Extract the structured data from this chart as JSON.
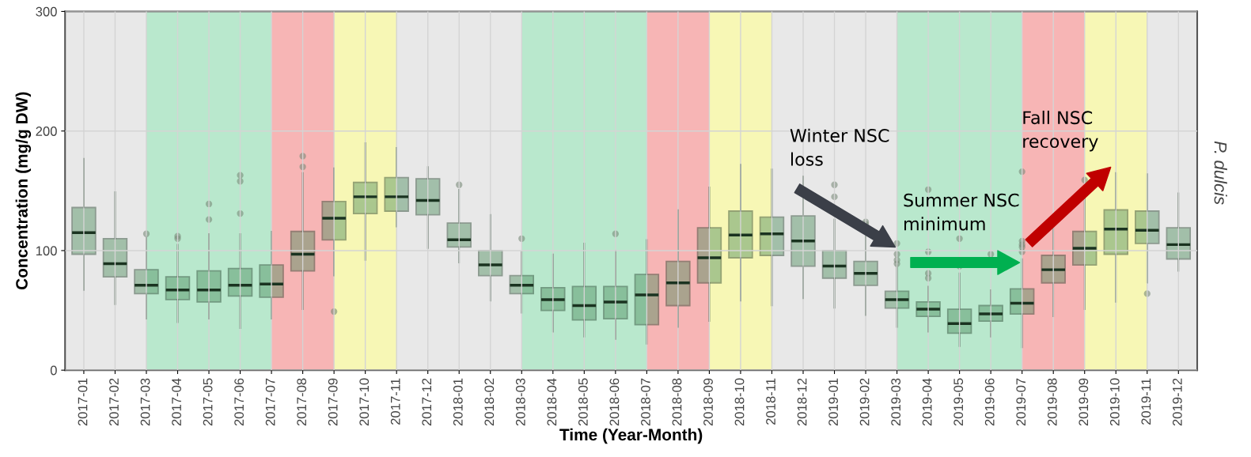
{
  "chart_data": {
    "type": "box",
    "xlabel": "Time (Year-Month)",
    "ylabel": "Concentration (mg/g DW)",
    "y2label": "P. dulcis",
    "categories": [
      "2017-01",
      "2017-02",
      "2017-03",
      "2017-04",
      "2017-05",
      "2017-06",
      "2017-07",
      "2017-08",
      "2017-09",
      "2017-10",
      "2017-11",
      "2017-12",
      "2018-01",
      "2018-02",
      "2018-03",
      "2018-04",
      "2018-05",
      "2018-06",
      "2018-07",
      "2018-08",
      "2018-09",
      "2018-10",
      "2018-11",
      "2018-12",
      "2019-01",
      "2019-02",
      "2019-03",
      "2019-04",
      "2019-05",
      "2019-06",
      "2019-07",
      "2019-08",
      "2019-09",
      "2019-10",
      "2019-11",
      "2019-12"
    ],
    "color": "#4f8f5f",
    "boxes": [
      {
        "low": 67,
        "q1": 97,
        "median": 115,
        "q3": 136,
        "high": 177
      },
      {
        "low": 55,
        "q1": 78,
        "median": 89,
        "q3": 110,
        "high": 149
      },
      {
        "low": 43,
        "q1": 64,
        "median": 71,
        "q3": 84,
        "high": 112,
        "outliers": [
          114
        ]
      },
      {
        "low": 40,
        "q1": 59,
        "median": 67,
        "q3": 78,
        "high": 105,
        "outliers": [
          110,
          112
        ]
      },
      {
        "low": 43,
        "q1": 57,
        "median": 67,
        "q3": 83,
        "high": 114,
        "outliers": [
          126,
          139
        ]
      },
      {
        "low": 35,
        "q1": 62,
        "median": 71,
        "q3": 85,
        "high": 114,
        "outliers": [
          131,
          158,
          163
        ]
      },
      {
        "low": 43,
        "q1": 61,
        "median": 72,
        "q3": 88,
        "high": 116
      },
      {
        "low": 51,
        "q1": 83,
        "median": 97,
        "q3": 116,
        "high": 165,
        "outliers": [
          170,
          179
        ]
      },
      {
        "low": 79,
        "q1": 109,
        "median": 127,
        "q3": 141,
        "high": 169,
        "outliers": [
          49
        ]
      },
      {
        "low": 92,
        "q1": 131,
        "median": 145,
        "q3": 157,
        "high": 190
      },
      {
        "low": 120,
        "q1": 133,
        "median": 145,
        "q3": 161,
        "high": 186
      },
      {
        "low": 102,
        "q1": 130,
        "median": 142,
        "q3": 160,
        "high": 170
      },
      {
        "low": 90,
        "q1": 103,
        "median": 109,
        "q3": 123,
        "high": 151,
        "outliers": [
          155
        ]
      },
      {
        "low": 58,
        "q1": 79,
        "median": 88,
        "q3": 100,
        "high": 130
      },
      {
        "low": 48,
        "q1": 64,
        "median": 71,
        "q3": 79,
        "high": 99,
        "outliers": [
          110
        ]
      },
      {
        "low": 32,
        "q1": 50,
        "median": 59,
        "q3": 69,
        "high": 97
      },
      {
        "low": 28,
        "q1": 42,
        "median": 54,
        "q3": 70,
        "high": 106
      },
      {
        "low": 26,
        "q1": 43,
        "median": 57,
        "q3": 70,
        "high": 100,
        "outliers": [
          114
        ]
      },
      {
        "low": 22,
        "q1": 38,
        "median": 63,
        "q3": 80,
        "high": 109
      },
      {
        "low": 36,
        "q1": 54,
        "median": 73,
        "q3": 91,
        "high": 134
      },
      {
        "low": 41,
        "q1": 73,
        "median": 94,
        "q3": 119,
        "high": 153
      },
      {
        "low": 58,
        "q1": 94,
        "median": 113,
        "q3": 133,
        "high": 172
      },
      {
        "low": 54,
        "q1": 96,
        "median": 114,
        "q3": 128,
        "high": 168
      },
      {
        "low": 60,
        "q1": 87,
        "median": 108,
        "q3": 129,
        "high": 162
      },
      {
        "low": 52,
        "q1": 77,
        "median": 87,
        "q3": 100,
        "high": 126,
        "outliers": [
          145,
          155
        ]
      },
      {
        "low": 46,
        "q1": 71,
        "median": 81,
        "q3": 91,
        "high": 112,
        "outliers": [
          122,
          124
        ]
      },
      {
        "low": 36,
        "q1": 52,
        "median": 59,
        "q3": 66,
        "high": 88,
        "outliers": [
          89,
          92,
          97,
          106
        ]
      },
      {
        "low": 32,
        "q1": 45,
        "median": 51,
        "q3": 57,
        "high": 70,
        "outliers": [
          77,
          81,
          99,
          151
        ]
      },
      {
        "low": 20,
        "q1": 31,
        "median": 39,
        "q3": 51,
        "high": 81,
        "outliers": [
          87,
          110
        ]
      },
      {
        "low": 28,
        "q1": 41,
        "median": 47,
        "q3": 54,
        "high": 67,
        "outliers": [
          97
        ]
      },
      {
        "low": 19,
        "q1": 47,
        "median": 56,
        "q3": 68,
        "high": 93,
        "outliers": [
          99,
          103,
          105,
          108,
          166
        ]
      },
      {
        "low": 45,
        "q1": 73,
        "median": 84,
        "q3": 96,
        "high": 121
      },
      {
        "low": 51,
        "q1": 88,
        "median": 102,
        "q3": 116,
        "high": 148,
        "outliers": [
          159
        ]
      },
      {
        "low": 57,
        "q1": 97,
        "median": 118,
        "q3": 134,
        "high": 165
      },
      {
        "low": 73,
        "q1": 106,
        "median": 117,
        "q3": 133,
        "high": 164,
        "outliers": [
          64
        ]
      },
      {
        "low": 83,
        "q1": 93,
        "median": 105,
        "q3": 119,
        "high": 148
      }
    ],
    "ylim": [
      0,
      300
    ],
    "yticks": [
      0,
      100,
      200,
      300
    ],
    "grid": true,
    "bands": [
      {
        "axis": "x",
        "from": "2017-03",
        "to": "2017-07",
        "color": "#9fe8bf"
      },
      {
        "axis": "x",
        "from": "2017-07",
        "to": "2017-09",
        "color": "#ff9a9a"
      },
      {
        "axis": "x",
        "from": "2017-09",
        "to": "2017-11",
        "color": "#ffff99"
      },
      {
        "axis": "x",
        "from": "2018-03",
        "to": "2018-07",
        "color": "#9fe8bf"
      },
      {
        "axis": "x",
        "from": "2018-07",
        "to": "2018-09",
        "color": "#ff9a9a"
      },
      {
        "axis": "x",
        "from": "2018-09",
        "to": "2018-11",
        "color": "#ffff99"
      },
      {
        "axis": "x",
        "from": "2019-03",
        "to": "2019-07",
        "color": "#9fe8bf"
      },
      {
        "axis": "x",
        "from": "2019-07",
        "to": "2019-09",
        "color": "#ff9a9a"
      },
      {
        "axis": "x",
        "from": "2019-09",
        "to": "2019-11",
        "color": "#ffff99"
      }
    ],
    "annotations": [
      "Winter NSC\nloss",
      "Summer NSC\nminimum",
      "Fall NSC\nrecovery"
    ]
  }
}
